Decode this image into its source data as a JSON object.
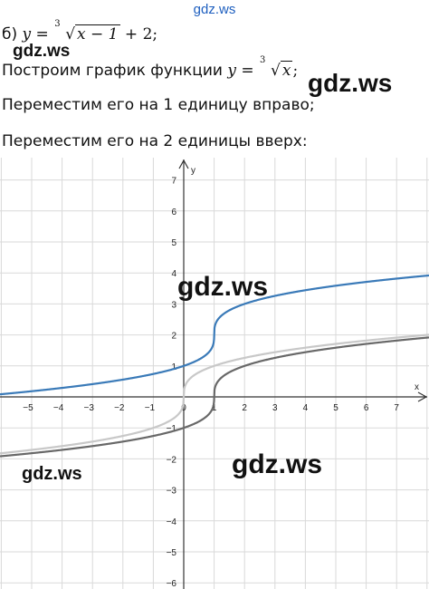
{
  "watermarks": {
    "top": "gdz.ws",
    "a": "gdz.ws",
    "b": "gdz.ws",
    "c": "gdz.ws",
    "d": "gdz.ws",
    "e": "gdz.ws"
  },
  "problem": {
    "label": "б)",
    "lhs": "y",
    "root_index": "3",
    "radicand": "x − 1",
    "tail": "+ 2;"
  },
  "step1": {
    "text": "Построим график функции",
    "lhs": "y",
    "root_index": "3",
    "radicand": "x",
    "tail": ";"
  },
  "step2": {
    "text": "Переместим его на 1 единицу вправо;"
  },
  "step3": {
    "text": "Переместим его на 2 единицы вверх:"
  },
  "chart_data": {
    "type": "line",
    "xlabel": "x",
    "ylabel": "y",
    "xlim": [
      -6,
      8.3
    ],
    "ylim": [
      -6.2,
      7.7
    ],
    "x_ticks": [
      -5,
      -4,
      -3,
      -2,
      -1,
      0,
      1,
      2,
      3,
      4,
      5,
      6,
      7
    ],
    "y_ticks": [
      -6,
      -5,
      -4,
      -3,
      -2,
      -1,
      1,
      2,
      3,
      4,
      5,
      6,
      7
    ],
    "grid": true,
    "series": [
      {
        "formula": "cbrt(x)",
        "color": "#c8c8c8",
        "shift_x": 0,
        "shift_y": 0
      },
      {
        "formula": "cbrt(x - 1)",
        "color": "#686868",
        "shift_x": 1,
        "shift_y": 0
      },
      {
        "formula": "cbrt(x - 1) + 2",
        "color": "#3a7ab8",
        "shift_x": 1,
        "shift_y": 2
      }
    ]
  }
}
